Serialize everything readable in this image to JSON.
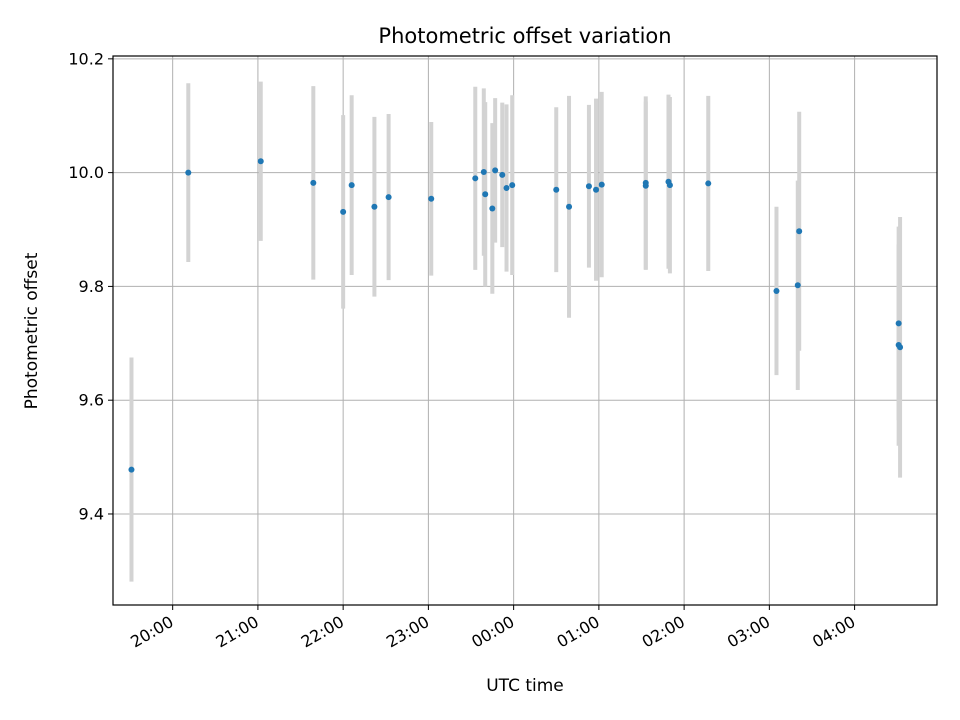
{
  "chart_data": {
    "type": "scatter",
    "title": "Photometric offset variation",
    "xlabel": "UTC time",
    "ylabel": "Photometric offset",
    "x_axis_kind": "time",
    "xlim": [
      "19:18",
      "04:58"
    ],
    "ylim": [
      9.24,
      10.205
    ],
    "x_ticks": [
      "20:00",
      "21:00",
      "22:00",
      "23:00",
      "00:00",
      "01:00",
      "02:00",
      "03:00",
      "04:00"
    ],
    "x_tick_rotation_deg": 30,
    "y_ticks": [
      9.4,
      9.6,
      9.8,
      10.0,
      10.2
    ],
    "y_tick_labels": [
      "9.4",
      "9.6",
      "9.8",
      "10.0",
      "10.2"
    ],
    "grid": true,
    "colors": {
      "points": "#1f77b4",
      "error_bars": "#d3d3d3",
      "grid": "#b0b0b0"
    },
    "series": [
      {
        "points": [
          {
            "x": "19:31",
            "y": 9.478,
            "err": 0.197
          },
          {
            "x": "20:11",
            "y": 10.0,
            "err": 0.157
          },
          {
            "x": "21:02",
            "y": 10.02,
            "err": 0.14
          },
          {
            "x": "21:39",
            "y": 9.982,
            "err": 0.17
          },
          {
            "x": "22:00",
            "y": 9.931,
            "err": 0.17
          },
          {
            "x": "22:06",
            "y": 9.978,
            "err": 0.158
          },
          {
            "x": "22:22",
            "y": 9.94,
            "err": 0.158
          },
          {
            "x": "22:32",
            "y": 9.957,
            "err": 0.146
          },
          {
            "x": "23:02",
            "y": 9.954,
            "err": 0.135
          },
          {
            "x": "23:33",
            "y": 9.99,
            "err": 0.161
          },
          {
            "x": "23:39",
            "y": 10.001,
            "err": 0.147
          },
          {
            "x": "23:40",
            "y": 9.962,
            "err": 0.162
          },
          {
            "x": "23:45",
            "y": 9.937,
            "err": 0.15
          },
          {
            "x": "23:47",
            "y": 10.004,
            "err": 0.127
          },
          {
            "x": "23:52",
            "y": 9.996,
            "err": 0.127
          },
          {
            "x": "23:55",
            "y": 9.973,
            "err": 0.147
          },
          {
            "x": "23:59",
            "y": 9.978,
            "err": 0.158
          },
          {
            "x": "00:30",
            "y": 9.97,
            "err": 0.145
          },
          {
            "x": "00:39",
            "y": 9.94,
            "err": 0.195
          },
          {
            "x": "00:53",
            "y": 9.976,
            "err": 0.143
          },
          {
            "x": "00:58",
            "y": 9.97,
            "err": 0.16
          },
          {
            "x": "01:02",
            "y": 9.979,
            "err": 0.163
          },
          {
            "x": "01:33",
            "y": 9.982,
            "err": 0.152
          },
          {
            "x": "01:33",
            "y": 9.977,
            "err": 0.148
          },
          {
            "x": "01:49",
            "y": 9.984,
            "err": 0.153
          },
          {
            "x": "01:50",
            "y": 9.978,
            "err": 0.155
          },
          {
            "x": "02:17",
            "y": 9.981,
            "err": 0.154
          },
          {
            "x": "03:05",
            "y": 9.792,
            "err": 0.148
          },
          {
            "x": "03:20",
            "y": 9.802,
            "err": 0.184
          },
          {
            "x": "03:21",
            "y": 9.897,
            "err": 0.21
          },
          {
            "x": "04:31",
            "y": 9.697,
            "err": 0.177
          },
          {
            "x": "04:31",
            "y": 9.735,
            "err": 0.17
          },
          {
            "x": "04:32",
            "y": 9.693,
            "err": 0.229
          }
        ]
      }
    ]
  }
}
